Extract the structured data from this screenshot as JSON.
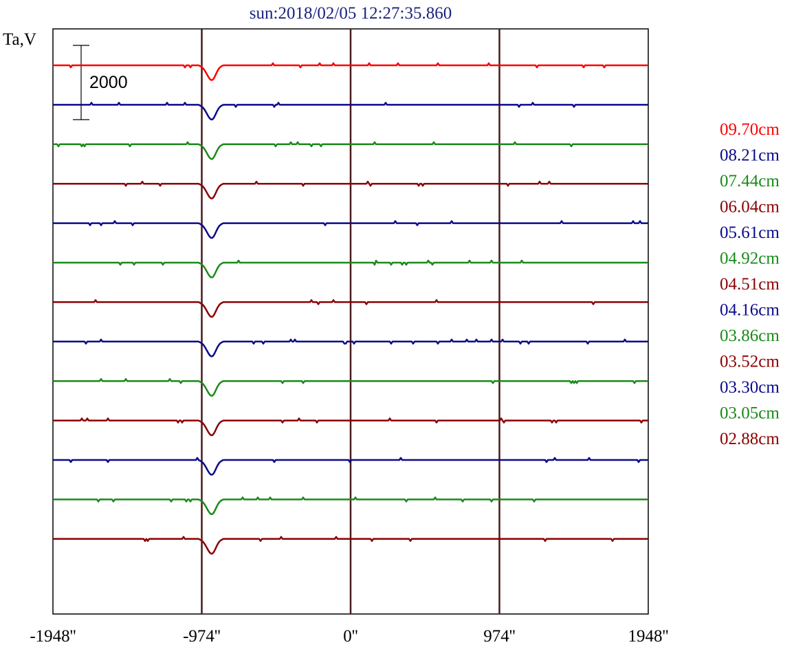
{
  "chart_data": {
    "type": "line",
    "title": "sun:2018/02/05 12:27:35.860",
    "ylabel": "Ta,V",
    "scale_bar_label": "2000",
    "scale_bar_value": 2000,
    "xlim": [
      -1948,
      1948
    ],
    "x_ticks": [
      -1948,
      -974,
      0,
      974,
      1948
    ],
    "x_tick_labels": [
      "-1948''",
      "-974''",
      "0''",
      "974''",
      "1948''"
    ],
    "vertical_lines_at": [
      -974,
      0,
      974
    ],
    "grid": false,
    "legend_position": "right",
    "series": [
      {
        "name": "09.70cm",
        "color": "#ff0000",
        "dip": 2000
      },
      {
        "name": "08.21cm",
        "color": "#0a0a8c",
        "dip": 2000
      },
      {
        "name": "07.44cm",
        "color": "#1a8a1a",
        "dip": 2000
      },
      {
        "name": "06.04cm",
        "color": "#8b0000",
        "dip": 2000
      },
      {
        "name": "05.61cm",
        "color": "#0a0a8c",
        "dip": 2000
      },
      {
        "name": "04.92cm",
        "color": "#1a8a1a",
        "dip": 2000
      },
      {
        "name": "04.51cm",
        "color": "#8b0000",
        "dip": 2000
      },
      {
        "name": "04.16cm",
        "color": "#0a0a8c",
        "dip": 2000
      },
      {
        "name": "03.86cm",
        "color": "#1a8a1a",
        "dip": 2000
      },
      {
        "name": "03.52cm",
        "color": "#8b0000",
        "dip": 2000
      },
      {
        "name": "03.30cm",
        "color": "#0a0a8c",
        "dip": 2000
      },
      {
        "name": "03.05cm",
        "color": "#1a8a1a",
        "dip": 2000
      },
      {
        "name": "02.88cm",
        "color": "#8b0000",
        "dip": 2000
      }
    ]
  },
  "colors": {
    "frame": "#000000",
    "vline": "#4a1a1a"
  }
}
